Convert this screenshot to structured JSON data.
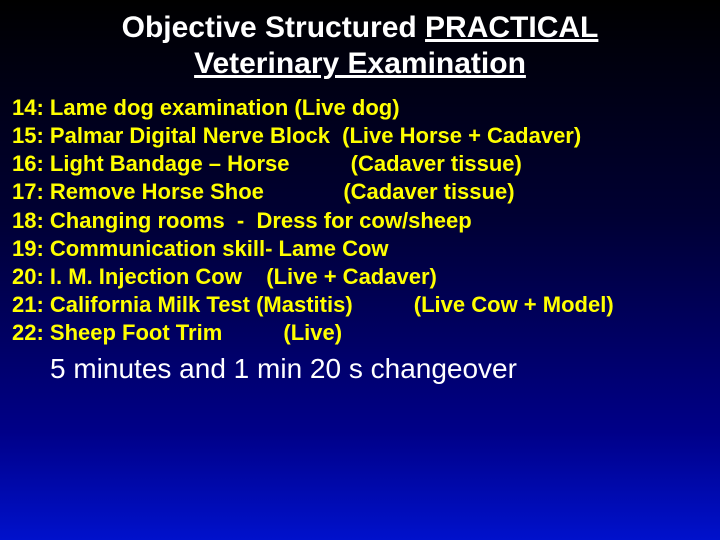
{
  "title": {
    "line1_prefix": "Objective Structured ",
    "line1_underlined": "PRACTICAL",
    "line2": "Veterinary Examination"
  },
  "items": [
    {
      "num": "14:",
      "text": "Lame dog examination (Live dog)"
    },
    {
      "num": "15:",
      "text": "Palmar Digital Nerve Block  (Live Horse + Cadaver)"
    },
    {
      "num": "16:",
      "text": "Light Bandage – Horse          (Cadaver tissue)"
    },
    {
      "num": "17:",
      "text": "Remove Horse Shoe             (Cadaver tissue)"
    },
    {
      "num": "18:",
      "text": "Changing rooms  -  Dress for cow/sheep"
    },
    {
      "num": "19:",
      "text": "Communication skill- Lame Cow"
    },
    {
      "num": "20:",
      "text": "I. M. Injection Cow    (Live + Cadaver)"
    },
    {
      "num": "21:",
      "text": "California Milk Test (Mastitis)          (Live Cow + Model)"
    },
    {
      "num": "22:",
      "text": "Sheep Foot Trim          (Live)"
    }
  ],
  "footer": "5 minutes and 1 min 20 s  changeover",
  "colors": {
    "title_color": "#ffffff",
    "item_color": "#ffff00",
    "footer_color": "#ffffff"
  },
  "typography": {
    "title_fontsize": 30,
    "item_fontsize": 22,
    "footer_fontsize": 28,
    "font_family": "Arial"
  }
}
